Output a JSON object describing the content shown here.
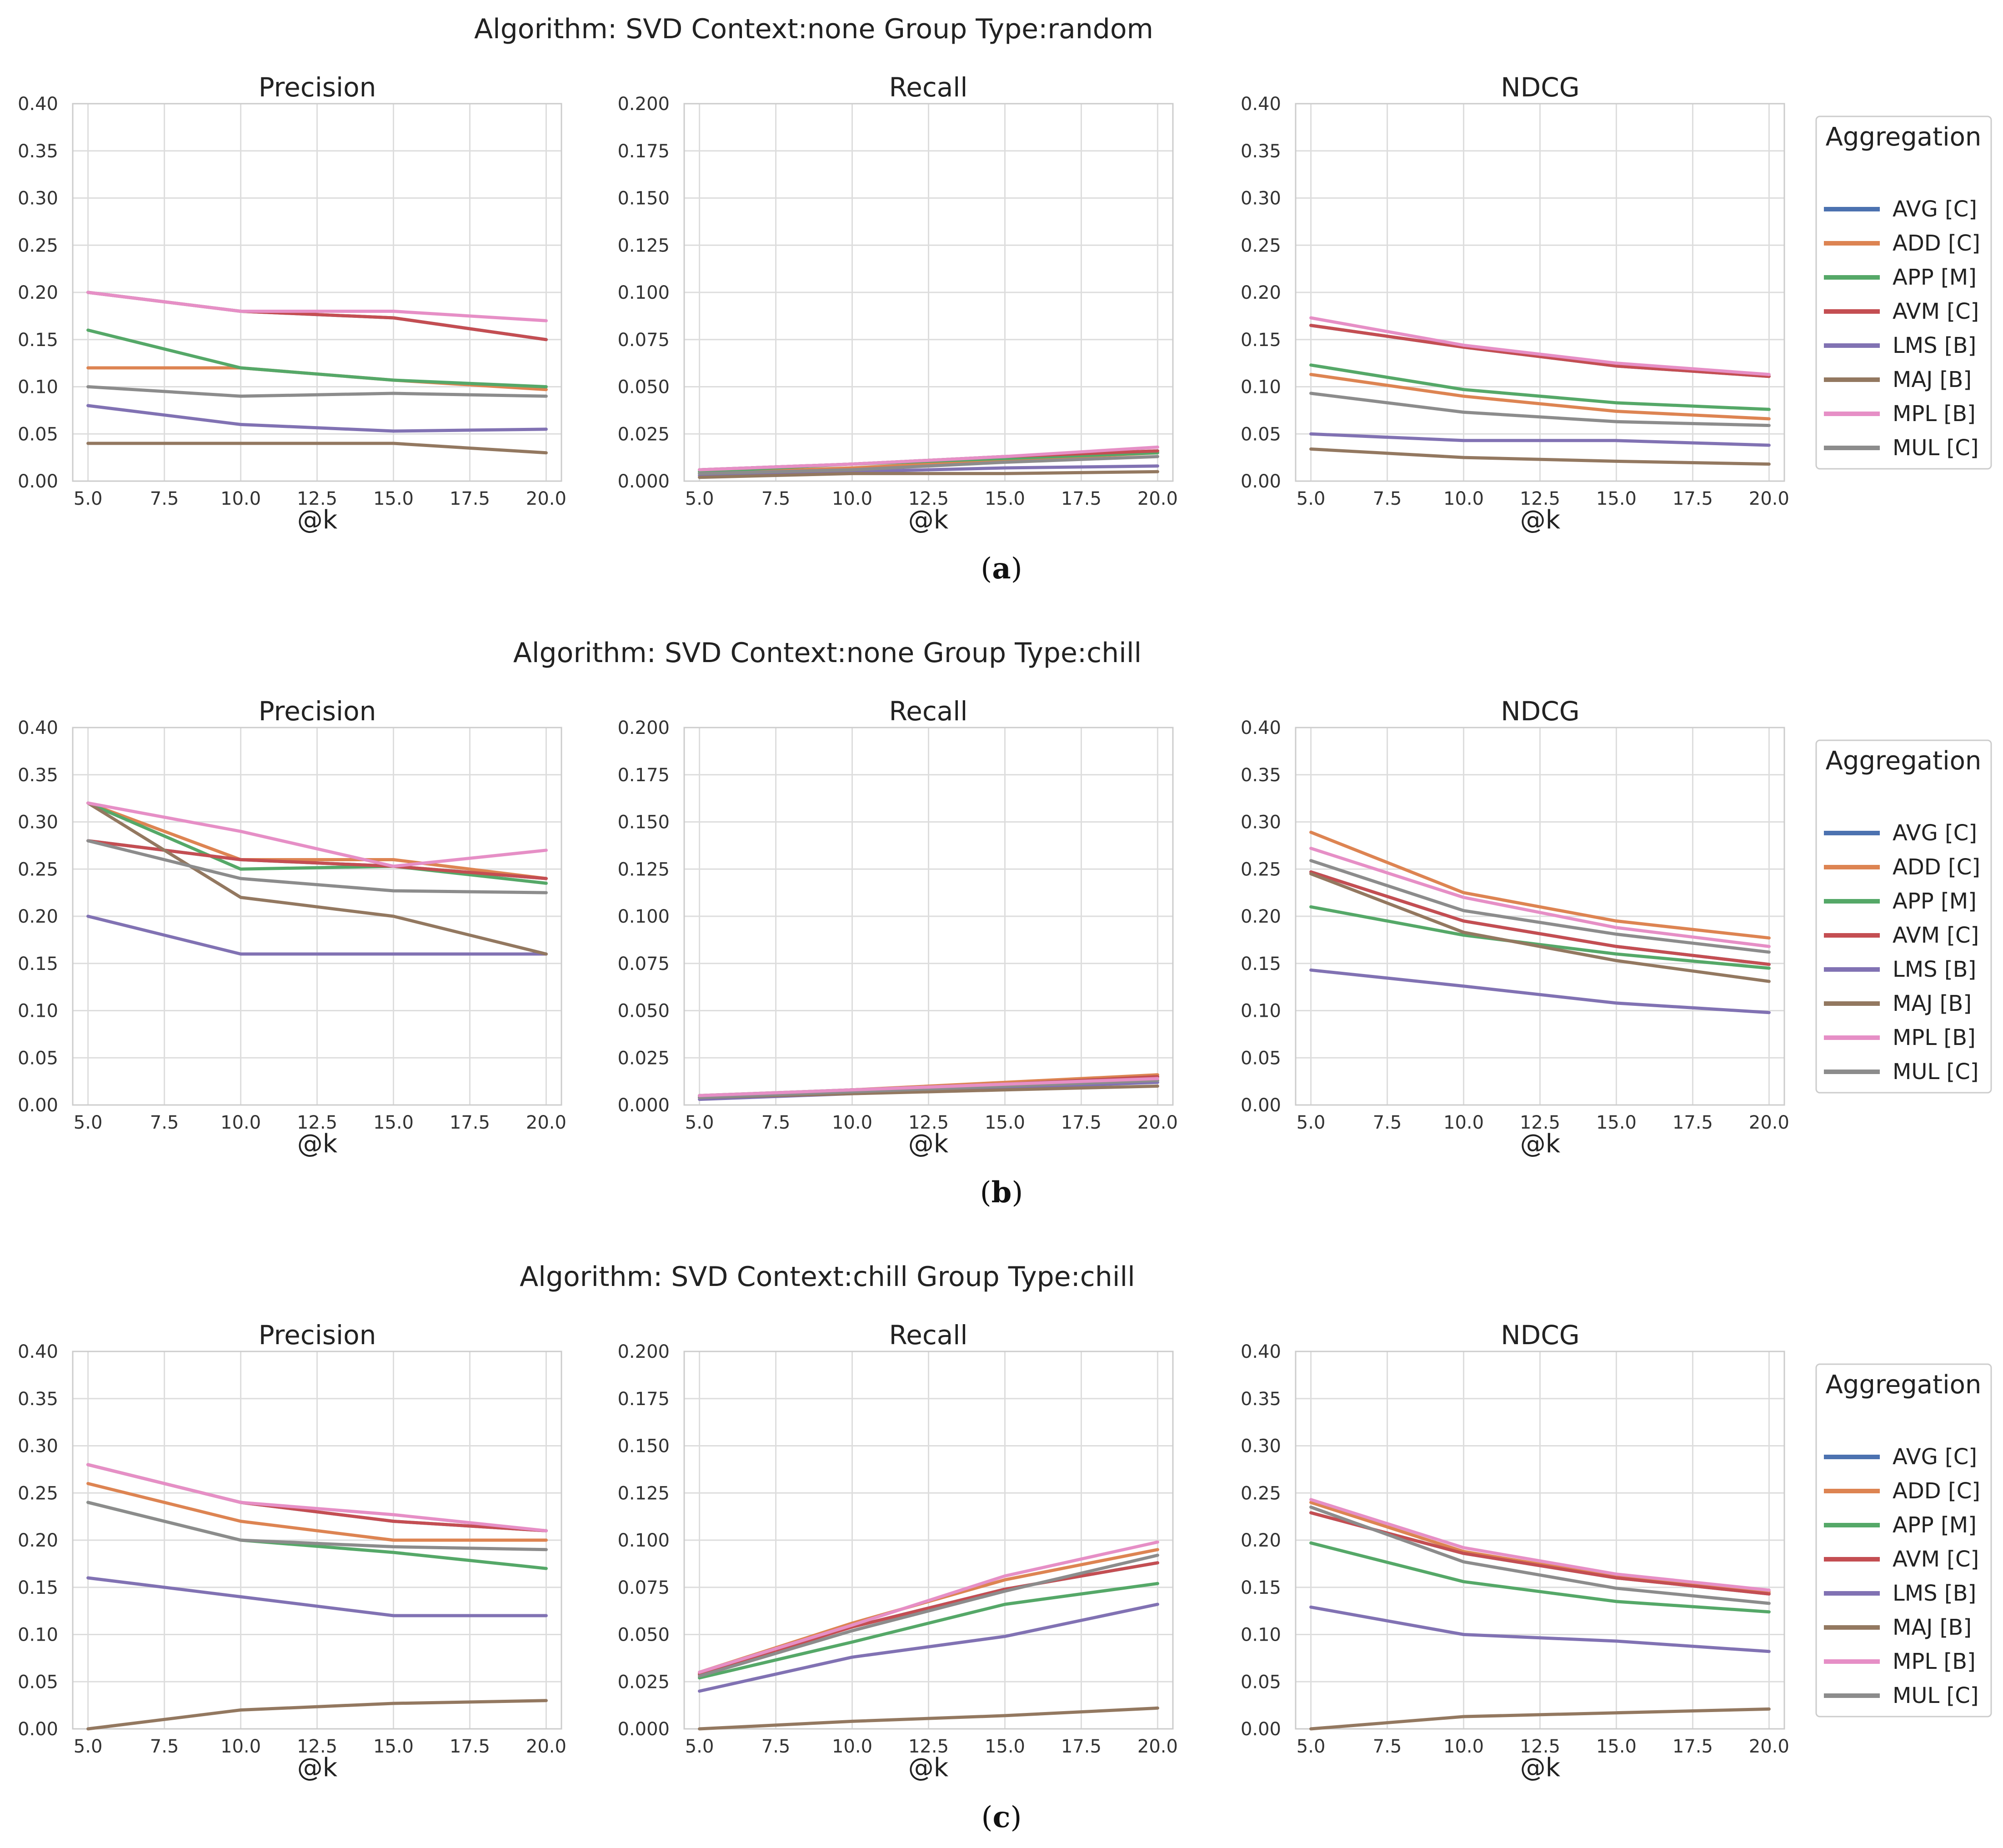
{
  "colors": {
    "AVG [C]": "#4c72b0",
    "ADD [C]": "#dd8452",
    "APP [M]": "#55a868",
    "AVM [C]": "#c44e52",
    "LMS [B]": "#8172b3",
    "MAJ [B]": "#937860",
    "MPL [B]": "#e68fc6",
    "MUL [C]": "#8c8c8c"
  },
  "legend": {
    "title": "Aggregation",
    "labels": [
      "AVG [C]",
      "ADD [C]",
      "APP [M]",
      "AVM [C]",
      "LMS [B]",
      "MAJ [B]",
      "MPL [B]",
      "MUL [C]"
    ]
  },
  "rows": [
    {
      "title": "Algorithm: SVD Context:none Group Type:random",
      "caption_open": "(",
      "caption_letter": "a",
      "caption_close": ")"
    },
    {
      "title": "Algorithm: SVD Context:none Group Type:chill",
      "caption_open": "(",
      "caption_letter": "b",
      "caption_close": ")"
    },
    {
      "title": "Algorithm: SVD Context:chill Group Type:chill",
      "caption_open": "(",
      "caption_letter": "c",
      "caption_close": ")"
    }
  ],
  "chart_data": [
    {
      "type": "line",
      "row": 0,
      "col": 0,
      "title": "Precision",
      "xlabel": "@k",
      "ylabel": "",
      "x": [
        5,
        10,
        15,
        20
      ],
      "xlim": [
        4.5,
        20.5
      ],
      "ylim": [
        0,
        0.4
      ],
      "xticks": [
        "5.0",
        "7.5",
        "10.0",
        "12.5",
        "15.0",
        "17.5",
        "20.0"
      ],
      "yticks": [
        "0.00",
        "0.05",
        "0.10",
        "0.15",
        "0.20",
        "0.25",
        "0.30",
        "0.35",
        "0.40"
      ],
      "series": [
        {
          "name": "AVG [C]",
          "values": [
            0.2,
            0.18,
            0.173,
            0.15
          ]
        },
        {
          "name": "ADD [C]",
          "values": [
            0.12,
            0.12,
            0.107,
            0.097
          ]
        },
        {
          "name": "APP [M]",
          "values": [
            0.16,
            0.12,
            0.107,
            0.1
          ]
        },
        {
          "name": "AVM [C]",
          "values": [
            0.2,
            0.18,
            0.173,
            0.15
          ]
        },
        {
          "name": "LMS [B]",
          "values": [
            0.08,
            0.06,
            0.053,
            0.055
          ]
        },
        {
          "name": "MAJ [B]",
          "values": [
            0.04,
            0.04,
            0.04,
            0.03
          ]
        },
        {
          "name": "MPL [B]",
          "values": [
            0.2,
            0.18,
            0.18,
            0.17
          ]
        },
        {
          "name": "MUL [C]",
          "values": [
            0.1,
            0.09,
            0.093,
            0.09
          ]
        }
      ]
    },
    {
      "type": "line",
      "row": 0,
      "col": 1,
      "title": "Recall",
      "xlabel": "@k",
      "ylabel": "",
      "x": [
        5,
        10,
        15,
        20
      ],
      "xlim": [
        4.5,
        20.5
      ],
      "ylim": [
        0,
        0.2
      ],
      "xticks": [
        "5.0",
        "7.5",
        "10.0",
        "12.5",
        "15.0",
        "17.5",
        "20.0"
      ],
      "yticks": [
        "0.000",
        "0.025",
        "0.050",
        "0.075",
        "0.100",
        "0.125",
        "0.150",
        "0.175",
        "0.200"
      ],
      "series": [
        {
          "name": "AVG [C]",
          "values": [
            0.006,
            0.009,
            0.013,
            0.016
          ]
        },
        {
          "name": "ADD [C]",
          "values": [
            0.004,
            0.007,
            0.011,
            0.015
          ]
        },
        {
          "name": "APP [M]",
          "values": [
            0.005,
            0.009,
            0.012,
            0.015
          ]
        },
        {
          "name": "AVM [C]",
          "values": [
            0.006,
            0.009,
            0.013,
            0.016
          ]
        },
        {
          "name": "LMS [B]",
          "values": [
            0.003,
            0.005,
            0.007,
            0.008
          ]
        },
        {
          "name": "MAJ [B]",
          "values": [
            0.002,
            0.004,
            0.004,
            0.005
          ]
        },
        {
          "name": "MPL [B]",
          "values": [
            0.006,
            0.009,
            0.013,
            0.018
          ]
        },
        {
          "name": "MUL [C]",
          "values": [
            0.004,
            0.006,
            0.01,
            0.013
          ]
        }
      ]
    },
    {
      "type": "line",
      "row": 0,
      "col": 2,
      "title": "NDCG",
      "xlabel": "@k",
      "ylabel": "",
      "x": [
        5,
        10,
        15,
        20
      ],
      "xlim": [
        4.5,
        20.5
      ],
      "ylim": [
        0,
        0.4
      ],
      "xticks": [
        "5.0",
        "7.5",
        "10.0",
        "12.5",
        "15.0",
        "17.5",
        "20.0"
      ],
      "yticks": [
        "0.00",
        "0.05",
        "0.10",
        "0.15",
        "0.20",
        "0.25",
        "0.30",
        "0.35",
        "0.40"
      ],
      "series": [
        {
          "name": "AVG [C]",
          "values": [
            0.165,
            0.142,
            0.122,
            0.111
          ]
        },
        {
          "name": "ADD [C]",
          "values": [
            0.113,
            0.09,
            0.074,
            0.066
          ]
        },
        {
          "name": "APP [M]",
          "values": [
            0.123,
            0.097,
            0.083,
            0.076
          ]
        },
        {
          "name": "AVM [C]",
          "values": [
            0.165,
            0.142,
            0.122,
            0.111
          ]
        },
        {
          "name": "LMS [B]",
          "values": [
            0.05,
            0.043,
            0.043,
            0.038
          ]
        },
        {
          "name": "MAJ [B]",
          "values": [
            0.034,
            0.025,
            0.021,
            0.018
          ]
        },
        {
          "name": "MPL [B]",
          "values": [
            0.173,
            0.144,
            0.125,
            0.113
          ]
        },
        {
          "name": "MUL [C]",
          "values": [
            0.093,
            0.073,
            0.063,
            0.059
          ]
        }
      ]
    },
    {
      "type": "line",
      "row": 1,
      "col": 0,
      "title": "Precision",
      "xlabel": "@k",
      "ylabel": "",
      "x": [
        5,
        10,
        15,
        20
      ],
      "xlim": [
        4.5,
        20.5
      ],
      "ylim": [
        0,
        0.4
      ],
      "xticks": [
        "5.0",
        "7.5",
        "10.0",
        "12.5",
        "15.0",
        "17.5",
        "20.0"
      ],
      "yticks": [
        "0.00",
        "0.05",
        "0.10",
        "0.15",
        "0.20",
        "0.25",
        "0.30",
        "0.35",
        "0.40"
      ],
      "series": [
        {
          "name": "AVG [C]",
          "values": [
            0.28,
            0.26,
            0.253,
            0.24
          ]
        },
        {
          "name": "ADD [C]",
          "values": [
            0.32,
            0.26,
            0.26,
            0.24
          ]
        },
        {
          "name": "APP [M]",
          "values": [
            0.32,
            0.25,
            0.253,
            0.235
          ]
        },
        {
          "name": "AVM [C]",
          "values": [
            0.28,
            0.26,
            0.253,
            0.24
          ]
        },
        {
          "name": "LMS [B]",
          "values": [
            0.2,
            0.16,
            0.16,
            0.16
          ]
        },
        {
          "name": "MAJ [B]",
          "values": [
            0.32,
            0.22,
            0.2,
            0.16
          ]
        },
        {
          "name": "MPL [B]",
          "values": [
            0.32,
            0.29,
            0.253,
            0.27
          ]
        },
        {
          "name": "MUL [C]",
          "values": [
            0.28,
            0.24,
            0.227,
            0.225
          ]
        }
      ]
    },
    {
      "type": "line",
      "row": 1,
      "col": 1,
      "title": "Recall",
      "xlabel": "@k",
      "ylabel": "",
      "x": [
        5,
        10,
        15,
        20
      ],
      "xlim": [
        4.5,
        20.5
      ],
      "ylim": [
        0,
        0.2
      ],
      "xticks": [
        "5.0",
        "7.5",
        "10.0",
        "12.5",
        "15.0",
        "17.5",
        "20.0"
      ],
      "yticks": [
        "0.000",
        "0.025",
        "0.050",
        "0.075",
        "0.100",
        "0.125",
        "0.150",
        "0.175",
        "0.200"
      ],
      "series": [
        {
          "name": "AVG [C]",
          "values": [
            0.004,
            0.008,
            0.011,
            0.015
          ]
        },
        {
          "name": "ADD [C]",
          "values": [
            0.005,
            0.008,
            0.012,
            0.016
          ]
        },
        {
          "name": "APP [M]",
          "values": [
            0.005,
            0.008,
            0.011,
            0.015
          ]
        },
        {
          "name": "AVM [C]",
          "values": [
            0.004,
            0.008,
            0.011,
            0.015
          ]
        },
        {
          "name": "LMS [B]",
          "values": [
            0.003,
            0.006,
            0.009,
            0.012
          ]
        },
        {
          "name": "MAJ [B]",
          "values": [
            0.004,
            0.006,
            0.008,
            0.01
          ]
        },
        {
          "name": "MPL [B]",
          "values": [
            0.005,
            0.008,
            0.011,
            0.014
          ]
        },
        {
          "name": "MUL [C]",
          "values": [
            0.004,
            0.007,
            0.01,
            0.013
          ]
        }
      ]
    },
    {
      "type": "line",
      "row": 1,
      "col": 2,
      "title": "NDCG",
      "xlabel": "@k",
      "ylabel": "",
      "x": [
        5,
        10,
        15,
        20
      ],
      "xlim": [
        4.5,
        20.5
      ],
      "ylim": [
        0,
        0.4
      ],
      "xticks": [
        "5.0",
        "7.5",
        "10.0",
        "12.5",
        "15.0",
        "17.5",
        "20.0"
      ],
      "yticks": [
        "0.00",
        "0.05",
        "0.10",
        "0.15",
        "0.20",
        "0.25",
        "0.30",
        "0.35",
        "0.40"
      ],
      "series": [
        {
          "name": "AVG [C]",
          "values": [
            0.247,
            0.195,
            0.168,
            0.149
          ]
        },
        {
          "name": "ADD [C]",
          "values": [
            0.289,
            0.225,
            0.195,
            0.177
          ]
        },
        {
          "name": "APP [M]",
          "values": [
            0.21,
            0.18,
            0.16,
            0.145
          ]
        },
        {
          "name": "AVM [C]",
          "values": [
            0.247,
            0.195,
            0.168,
            0.149
          ]
        },
        {
          "name": "LMS [B]",
          "values": [
            0.143,
            0.126,
            0.108,
            0.098
          ]
        },
        {
          "name": "MAJ [B]",
          "values": [
            0.245,
            0.183,
            0.153,
            0.131
          ]
        },
        {
          "name": "MPL [B]",
          "values": [
            0.272,
            0.22,
            0.188,
            0.168
          ]
        },
        {
          "name": "MUL [C]",
          "values": [
            0.259,
            0.206,
            0.181,
            0.162
          ]
        }
      ]
    },
    {
      "type": "line",
      "row": 2,
      "col": 0,
      "title": "Precision",
      "xlabel": "@k",
      "ylabel": "",
      "x": [
        5,
        10,
        15,
        20
      ],
      "xlim": [
        4.5,
        20.5
      ],
      "ylim": [
        0,
        0.4
      ],
      "xticks": [
        "5.0",
        "7.5",
        "10.0",
        "12.5",
        "15.0",
        "17.5",
        "20.0"
      ],
      "yticks": [
        "0.00",
        "0.05",
        "0.10",
        "0.15",
        "0.20",
        "0.25",
        "0.30",
        "0.35",
        "0.40"
      ],
      "series": [
        {
          "name": "AVG [C]",
          "values": [
            0.28,
            0.24,
            0.22,
            0.21
          ]
        },
        {
          "name": "ADD [C]",
          "values": [
            0.26,
            0.22,
            0.2,
            0.2
          ]
        },
        {
          "name": "APP [M]",
          "values": [
            0.24,
            0.2,
            0.187,
            0.17
          ]
        },
        {
          "name": "AVM [C]",
          "values": [
            0.28,
            0.24,
            0.22,
            0.21
          ]
        },
        {
          "name": "LMS [B]",
          "values": [
            0.16,
            0.14,
            0.12,
            0.12
          ]
        },
        {
          "name": "MAJ [B]",
          "values": [
            0.0,
            0.02,
            0.027,
            0.03
          ]
        },
        {
          "name": "MPL [B]",
          "values": [
            0.28,
            0.24,
            0.227,
            0.21
          ]
        },
        {
          "name": "MUL [C]",
          "values": [
            0.24,
            0.2,
            0.193,
            0.19
          ]
        }
      ]
    },
    {
      "type": "line",
      "row": 2,
      "col": 1,
      "title": "Recall",
      "xlabel": "@k",
      "ylabel": "",
      "x": [
        5,
        10,
        15,
        20
      ],
      "xlim": [
        4.5,
        20.5
      ],
      "ylim": [
        0,
        0.2
      ],
      "xticks": [
        "5.0",
        "7.5",
        "10.0",
        "12.5",
        "15.0",
        "17.5",
        "20.0"
      ],
      "yticks": [
        "0.000",
        "0.025",
        "0.050",
        "0.075",
        "0.100",
        "0.125",
        "0.150",
        "0.175",
        "0.200"
      ],
      "series": [
        {
          "name": "AVG [C]",
          "values": [
            0.029,
            0.054,
            0.074,
            0.088
          ]
        },
        {
          "name": "ADD [C]",
          "values": [
            0.03,
            0.056,
            0.079,
            0.095
          ]
        },
        {
          "name": "APP [M]",
          "values": [
            0.027,
            0.046,
            0.066,
            0.077
          ]
        },
        {
          "name": "AVM [C]",
          "values": [
            0.029,
            0.054,
            0.074,
            0.088
          ]
        },
        {
          "name": "LMS [B]",
          "values": [
            0.02,
            0.038,
            0.049,
            0.066
          ]
        },
        {
          "name": "MAJ [B]",
          "values": [
            0.0,
            0.004,
            0.007,
            0.011
          ]
        },
        {
          "name": "MPL [B]",
          "values": [
            0.03,
            0.055,
            0.081,
            0.099
          ]
        },
        {
          "name": "MUL [C]",
          "values": [
            0.028,
            0.052,
            0.073,
            0.092
          ]
        }
      ]
    },
    {
      "type": "line",
      "row": 2,
      "col": 2,
      "title": "NDCG",
      "xlabel": "@k",
      "ylabel": "",
      "x": [
        5,
        10,
        15,
        20
      ],
      "xlim": [
        4.5,
        20.5
      ],
      "ylim": [
        0,
        0.4
      ],
      "xticks": [
        "5.0",
        "7.5",
        "10.0",
        "12.5",
        "15.0",
        "17.5",
        "20.0"
      ],
      "yticks": [
        "0.00",
        "0.05",
        "0.10",
        "0.15",
        "0.20",
        "0.25",
        "0.30",
        "0.35",
        "0.40"
      ],
      "series": [
        {
          "name": "AVG [C]",
          "values": [
            0.229,
            0.186,
            0.16,
            0.143
          ]
        },
        {
          "name": "ADD [C]",
          "values": [
            0.24,
            0.188,
            0.161,
            0.145
          ]
        },
        {
          "name": "APP [M]",
          "values": [
            0.197,
            0.156,
            0.135,
            0.124
          ]
        },
        {
          "name": "AVM [C]",
          "values": [
            0.229,
            0.186,
            0.16,
            0.143
          ]
        },
        {
          "name": "LMS [B]",
          "values": [
            0.129,
            0.1,
            0.093,
            0.082
          ]
        },
        {
          "name": "MAJ [B]",
          "values": [
            0.0,
            0.013,
            0.017,
            0.021
          ]
        },
        {
          "name": "MPL [B]",
          "values": [
            0.243,
            0.192,
            0.164,
            0.147
          ]
        },
        {
          "name": "MUL [C]",
          "values": [
            0.235,
            0.177,
            0.149,
            0.133
          ]
        }
      ]
    }
  ]
}
